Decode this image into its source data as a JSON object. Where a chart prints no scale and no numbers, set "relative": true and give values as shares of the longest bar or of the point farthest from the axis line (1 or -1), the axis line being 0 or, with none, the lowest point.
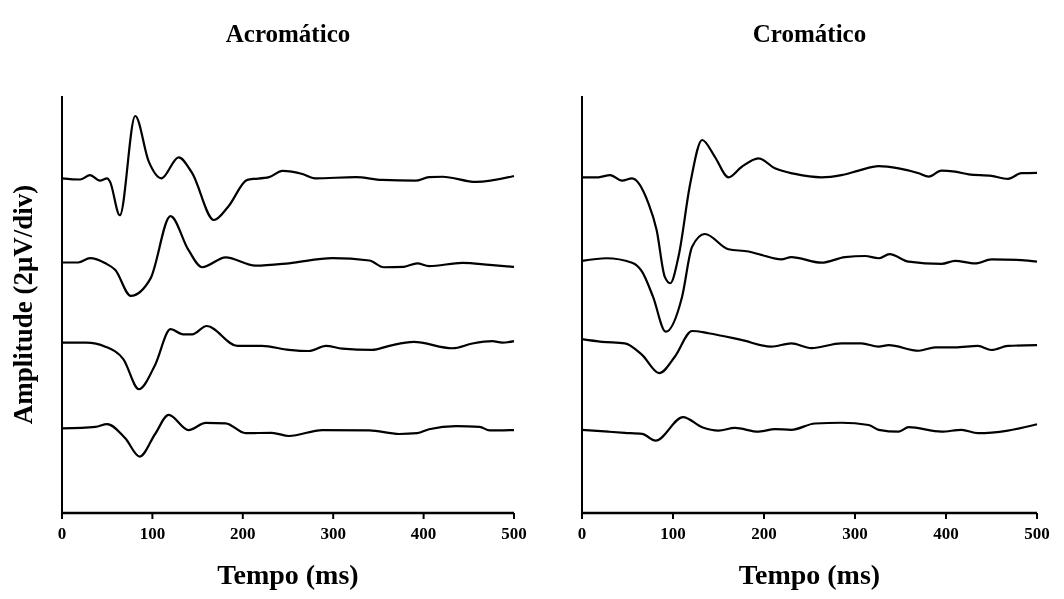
{
  "chart_data": [
    {
      "type": "line",
      "title": "Acromático",
      "xlabel": "Tempo (ms)",
      "ylabel": "Amplitude (2μV/div)",
      "relative": true,
      "xlim": [
        0,
        500
      ],
      "xticks": [
        0,
        100,
        200,
        300,
        400,
        500
      ],
      "marker": "none",
      "line_style": "solid",
      "series": [
        {
          "color": "#000000",
          "x": [
            0,
            20,
            31,
            42,
            50,
            53,
            64,
            81,
            96,
            110,
            129,
            144,
            168,
            184,
            205,
            229,
            244,
            266,
            280,
            325,
            354,
            391,
            406,
            421,
            458,
            500
          ],
          "values": [
            0.843,
            0.84,
            0.851,
            0.837,
            0.843,
            0.835,
            0.75,
            1.0,
            0.885,
            0.843,
            0.896,
            0.856,
            0.738,
            0.772,
            0.839,
            0.846,
            0.862,
            0.854,
            0.843,
            0.846,
            0.839,
            0.837,
            0.846,
            0.847,
            0.834,
            0.849
          ]
        },
        {
          "color": "#000000",
          "x": [
            0,
            18,
            31,
            48,
            59,
            76,
            98,
            120,
            140,
            155,
            181,
            214,
            251,
            299,
            340,
            356,
            378,
            393,
            406,
            443,
            473,
            500
          ],
          "values": [
            0.631,
            0.631,
            0.642,
            0.629,
            0.612,
            0.547,
            0.591,
            0.748,
            0.662,
            0.619,
            0.644,
            0.623,
            0.629,
            0.642,
            0.636,
            0.619,
            0.62,
            0.629,
            0.622,
            0.63,
            0.625,
            0.62
          ]
        },
        {
          "color": "#000000",
          "x": [
            0,
            27,
            48,
            68,
            85,
            103,
            120,
            134,
            144,
            160,
            194,
            221,
            251,
            273,
            292,
            310,
            343,
            362,
            389,
            432,
            454,
            476,
            487,
            500
          ],
          "values": [
            0.429,
            0.429,
            0.419,
            0.387,
            0.312,
            0.373,
            0.463,
            0.45,
            0.45,
            0.471,
            0.421,
            0.421,
            0.411,
            0.408,
            0.421,
            0.414,
            0.411,
            0.421,
            0.431,
            0.415,
            0.427,
            0.433,
            0.429,
            0.433
          ]
        },
        {
          "color": "#000000",
          "x": [
            0,
            37,
            50,
            70,
            86,
            103,
            118,
            140,
            159,
            181,
            203,
            232,
            251,
            288,
            340,
            373,
            393,
            406,
            436,
            462,
            473,
            500
          ],
          "values": [
            0.213,
            0.217,
            0.224,
            0.188,
            0.142,
            0.199,
            0.247,
            0.209,
            0.227,
            0.226,
            0.201,
            0.202,
            0.194,
            0.209,
            0.208,
            0.199,
            0.201,
            0.211,
            0.219,
            0.217,
            0.208,
            0.209
          ]
        }
      ]
    },
    {
      "type": "line",
      "title": "Cromático",
      "xlabel": "Tempo (ms)",
      "relative": true,
      "xlim": [
        0,
        500
      ],
      "xticks": [
        0,
        100,
        200,
        300,
        400,
        500
      ],
      "marker": "none",
      "line_style": "solid",
      "series": [
        {
          "color": "#000000",
          "x": [
            0,
            18,
            31,
            44,
            55,
            73,
            82,
            91,
            97,
            106,
            119,
            132,
            146,
            161,
            175,
            194,
            212,
            234,
            263,
            285,
            304,
            326,
            348,
            370,
            381,
            395,
            410,
            425,
            450,
            468,
            483,
            500
          ],
          "values": [
            0.9,
            0.9,
            0.906,
            0.891,
            0.897,
            0.83,
            0.759,
            0.633,
            0.616,
            0.687,
            0.884,
            1.0,
            0.955,
            0.9,
            0.927,
            0.951,
            0.924,
            0.909,
            0.9,
            0.906,
            0.918,
            0.93,
            0.924,
            0.911,
            0.902,
            0.918,
            0.915,
            0.908,
            0.904,
            0.896,
            0.911,
            0.912
          ]
        },
        {
          "color": "#000000",
          "x": [
            0,
            27,
            55,
            66,
            78,
            92,
            110,
            121,
            135,
            161,
            183,
            197,
            219,
            230,
            263,
            289,
            311,
            326,
            338,
            359,
            395,
            410,
            432,
            450,
            483,
            500
          ],
          "values": [
            0.676,
            0.683,
            0.671,
            0.647,
            0.58,
            0.486,
            0.58,
            0.714,
            0.748,
            0.707,
            0.701,
            0.692,
            0.68,
            0.686,
            0.671,
            0.686,
            0.689,
            0.683,
            0.694,
            0.674,
            0.668,
            0.676,
            0.669,
            0.68,
            0.678,
            0.674
          ]
        },
        {
          "color": "#000000",
          "x": [
            0,
            22,
            47,
            66,
            85,
            102,
            121,
            139,
            175,
            208,
            230,
            252,
            285,
            307,
            326,
            337,
            370,
            388,
            410,
            435,
            450,
            468,
            500
          ],
          "values": [
            0.466,
            0.459,
            0.455,
            0.424,
            0.375,
            0.419,
            0.488,
            0.482,
            0.464,
            0.446,
            0.455,
            0.442,
            0.455,
            0.455,
            0.446,
            0.45,
            0.435,
            0.444,
            0.444,
            0.448,
            0.437,
            0.448,
            0.45
          ]
        },
        {
          "color": "#000000",
          "x": [
            0,
            29,
            47,
            66,
            81,
            111,
            132,
            150,
            168,
            194,
            212,
            230,
            256,
            285,
            315,
            326,
            348,
            359,
            395,
            417,
            435,
            468,
            500
          ],
          "values": [
            0.223,
            0.218,
            0.215,
            0.212,
            0.194,
            0.257,
            0.23,
            0.221,
            0.228,
            0.218,
            0.225,
            0.223,
            0.24,
            0.242,
            0.236,
            0.223,
            0.218,
            0.23,
            0.218,
            0.223,
            0.214,
            0.221,
            0.238
          ]
        }
      ]
    }
  ]
}
